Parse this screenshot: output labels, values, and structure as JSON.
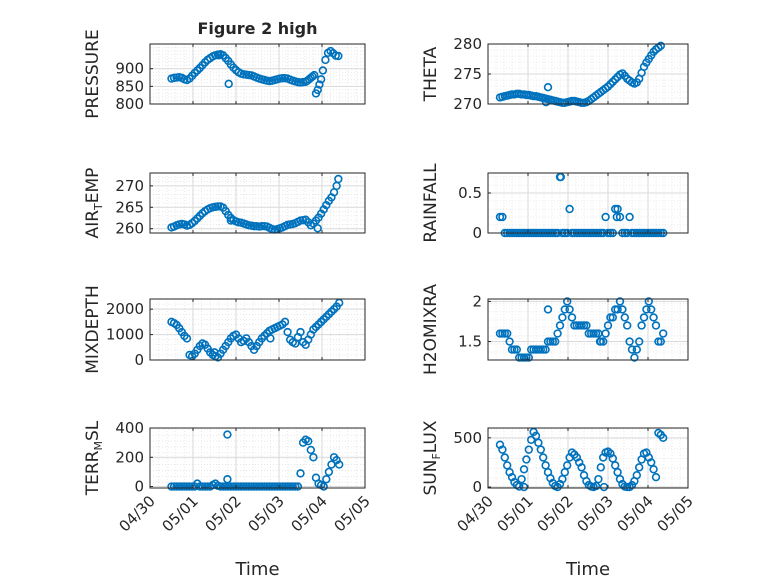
{
  "figure": {
    "title": "Figure 2 high",
    "xlabel": "Time",
    "x_ticks": [
      "04/30",
      "05/01",
      "05/02",
      "05/03",
      "05/04",
      "05/05"
    ],
    "marker_color": "#0072BD",
    "axes_color": "#262626",
    "grid_color": "#d9d9d9",
    "background": "#ffffff"
  },
  "chart_data": [
    {
      "type": "scatter",
      "title": "Figure 2 high",
      "ylabel": "PRESSURE",
      "ylabel_sub": "",
      "ylim": [
        800,
        970
      ],
      "yticks": [
        800,
        850,
        900
      ],
      "ytick_labels": [
        "800",
        "850",
        "900"
      ],
      "xlabel": "",
      "xlim": [
        0,
        5
      ],
      "grid": true,
      "marker": "circle-open",
      "x": [
        0.5,
        0.56,
        0.62,
        0.68,
        0.74,
        0.8,
        0.86,
        0.92,
        0.98,
        1.04,
        1.1,
        1.16,
        1.22,
        1.28,
        1.34,
        1.4,
        1.46,
        1.52,
        1.58,
        1.64,
        1.7,
        1.76,
        1.82,
        1.88,
        1.94,
        2.0,
        2.06,
        2.12,
        2.18,
        2.24,
        2.3,
        2.36,
        2.42,
        2.48,
        2.54,
        2.6,
        2.66,
        2.72,
        2.78,
        2.84,
        2.9,
        2.96,
        3.02,
        3.08,
        3.14,
        3.2,
        3.26,
        3.32,
        3.38,
        3.44,
        3.5,
        3.56,
        3.62,
        3.66,
        3.7,
        3.74,
        3.78,
        3.82,
        3.86,
        3.9,
        3.94,
        3.98,
        4.02,
        4.08,
        4.14,
        4.2,
        4.26,
        4.32,
        4.38
      ],
      "y": [
        872,
        874,
        875,
        876,
        874,
        870,
        868,
        872,
        880,
        888,
        895,
        902,
        910,
        918,
        925,
        930,
        935,
        938,
        940,
        941,
        938,
        930,
        922,
        912,
        903,
        896,
        890,
        886,
        884,
        883,
        882,
        881,
        878,
        875,
        872,
        870,
        868,
        866,
        865,
        866,
        868,
        870,
        872,
        873,
        873,
        872,
        869,
        866,
        864,
        862,
        861,
        862,
        863,
        866,
        870,
        874,
        878,
        882,
        830,
        840,
        855,
        870,
        895,
        925,
        945,
        950,
        944,
        937,
        936
      ],
      "outliers": [
        {
          "x": 1.83,
          "y": 857
        },
        {
          "x": 1.6,
          "y": 938
        }
      ]
    },
    {
      "type": "scatter",
      "title": "",
      "ylabel": "THETA",
      "ylabel_sub": "",
      "ylim": [
        270,
        280
      ],
      "yticks": [
        270,
        275,
        280
      ],
      "ytick_labels": [
        "270",
        "275",
        "280"
      ],
      "xlabel": "",
      "xlim": [
        0,
        5
      ],
      "grid": true,
      "marker": "circle-open",
      "x": [
        0.3,
        0.36,
        0.42,
        0.48,
        0.54,
        0.6,
        0.66,
        0.72,
        0.78,
        0.84,
        0.9,
        0.96,
        1.02,
        1.08,
        1.14,
        1.2,
        1.26,
        1.32,
        1.38,
        1.44,
        1.5,
        1.56,
        1.62,
        1.68,
        1.74,
        1.8,
        1.86,
        1.92,
        1.98,
        2.04,
        2.1,
        2.16,
        2.22,
        2.28,
        2.34,
        2.4,
        2.46,
        2.52,
        2.58,
        2.64,
        2.7,
        2.76,
        2.82,
        2.88,
        2.94,
        3.0,
        3.06,
        3.12,
        3.18,
        3.24,
        3.3,
        3.36,
        3.42,
        3.48,
        3.54,
        3.6,
        3.66,
        3.72,
        3.78,
        3.84,
        3.9,
        3.96,
        4.02,
        4.08,
        4.14,
        4.2,
        4.26,
        4.32
      ],
      "y": [
        271.1,
        271.2,
        271.3,
        271.4,
        271.5,
        271.6,
        271.6,
        271.7,
        271.7,
        271.6,
        271.6,
        271.5,
        271.5,
        271.4,
        271.3,
        271.3,
        271.2,
        271.1,
        271.0,
        270.9,
        270.8,
        270.7,
        270.6,
        270.5,
        270.4,
        270.3,
        270.2,
        270.2,
        270.3,
        270.4,
        270.5,
        270.5,
        270.4,
        270.3,
        270.2,
        270.2,
        270.3,
        270.5,
        270.8,
        271.1,
        271.4,
        271.7,
        272.0,
        272.3,
        272.6,
        272.9,
        273.3,
        273.7,
        274.1,
        274.5,
        274.9,
        275.1,
        274.7,
        274.2,
        273.9,
        273.6,
        273.4,
        273.6,
        274.2,
        275.2,
        276.2,
        276.9,
        277.5,
        278.1,
        278.7,
        279.1,
        279.4,
        279.7
      ],
      "outliers": [
        {
          "x": 1.5,
          "y": 272.8
        },
        {
          "x": 1.45,
          "y": 270.3
        }
      ]
    },
    {
      "type": "scatter",
      "title": "",
      "ylabel": "AIR",
      "ylabel_sub": "T",
      "ylabel_rest": "EMP",
      "ylim": [
        259,
        273
      ],
      "yticks": [
        260,
        265,
        270
      ],
      "ytick_labels": [
        "260",
        "265",
        "270"
      ],
      "xlabel": "",
      "xlim": [
        0,
        5
      ],
      "grid": true,
      "marker": "circle-open",
      "x": [
        0.5,
        0.56,
        0.62,
        0.68,
        0.74,
        0.8,
        0.86,
        0.92,
        0.98,
        1.04,
        1.1,
        1.16,
        1.22,
        1.28,
        1.34,
        1.4,
        1.46,
        1.52,
        1.58,
        1.64,
        1.7,
        1.76,
        1.82,
        1.88,
        1.94,
        2.0,
        2.06,
        2.12,
        2.18,
        2.24,
        2.3,
        2.36,
        2.42,
        2.48,
        2.54,
        2.6,
        2.66,
        2.72,
        2.78,
        2.84,
        2.9,
        2.96,
        3.02,
        3.08,
        3.14,
        3.2,
        3.26,
        3.32,
        3.38,
        3.44,
        3.5,
        3.56,
        3.62,
        3.68,
        3.74,
        3.8,
        3.86,
        3.92,
        3.98,
        4.04,
        4.1,
        4.16,
        4.22,
        4.28,
        4.34,
        4.38
      ],
      "y": [
        260.3,
        260.5,
        260.8,
        261.0,
        261.1,
        261.0,
        260.7,
        260.9,
        261.3,
        261.8,
        262.4,
        263.0,
        263.6,
        264.1,
        264.5,
        264.8,
        265.0,
        265.1,
        265.2,
        265.2,
        264.9,
        264.1,
        263.2,
        262.5,
        262.0,
        261.7,
        261.5,
        261.4,
        261.2,
        261.0,
        260.8,
        260.7,
        260.6,
        260.6,
        260.5,
        260.6,
        260.6,
        260.5,
        260.2,
        259.9,
        259.8,
        259.9,
        260.1,
        260.3,
        260.6,
        260.9,
        261.0,
        261.1,
        261.3,
        261.6,
        261.9,
        262.0,
        262.1,
        261.5,
        260.8,
        261.2,
        261.9,
        262.6,
        263.5,
        264.5,
        265.5,
        266.5,
        267.3,
        268.5,
        270.0,
        271.6
      ],
      "outliers": [
        {
          "x": 1.88,
          "y": 261.9
        },
        {
          "x": 3.9,
          "y": 260.1
        }
      ]
    },
    {
      "type": "scatter",
      "title": "",
      "ylabel": "RAINFALL",
      "ylabel_sub": "",
      "ylim": [
        0,
        0.75
      ],
      "yticks": [
        0,
        0.5
      ],
      "ytick_labels": [
        "0",
        "0.5"
      ],
      "xlabel": "",
      "xlim": [
        0,
        5
      ],
      "grid": true,
      "marker": "circle-open",
      "x": [
        0.3,
        0.36,
        0.42,
        0.48,
        0.54,
        0.6,
        0.66,
        0.72,
        0.78,
        0.84,
        0.9,
        0.96,
        1.02,
        1.08,
        1.14,
        1.2,
        1.26,
        1.32,
        1.38,
        1.44,
        1.5,
        1.56,
        1.62,
        1.68,
        1.74,
        1.8,
        1.86,
        1.92,
        1.98,
        2.04,
        2.1,
        2.16,
        2.22,
        2.28,
        2.34,
        2.4,
        2.46,
        2.52,
        2.58,
        2.64,
        2.7,
        2.76,
        2.82,
        2.88,
        2.94,
        3.0,
        3.06,
        3.12,
        3.18,
        3.24,
        3.3,
        3.36,
        3.42,
        3.48,
        3.54,
        3.6,
        3.66,
        3.72,
        3.78,
        3.84,
        3.9,
        3.96,
        4.02,
        4.08,
        4.14,
        4.2,
        4.26,
        4.32,
        4.38
      ],
      "y": [
        0.2,
        0.2,
        0,
        0,
        0,
        0,
        0,
        0,
        0,
        0,
        0,
        0,
        0,
        0,
        0,
        0,
        0,
        0,
        0,
        0,
        0,
        0,
        0,
        0,
        0,
        0.7,
        0,
        0,
        0,
        0.3,
        0,
        0,
        0,
        0,
        0,
        0,
        0,
        0,
        0,
        0,
        0,
        0,
        0,
        0,
        0.2,
        0,
        0,
        0,
        0.3,
        0.3,
        0.2,
        0,
        0,
        0,
        0.2,
        0,
        0,
        0,
        0,
        0,
        0,
        0,
        0,
        0,
        0,
        0,
        0,
        0,
        0
      ],
      "outliers": [
        {
          "x": 1.82,
          "y": 0.7
        },
        {
          "x": 3.22,
          "y": 0.2
        }
      ]
    },
    {
      "type": "scatter",
      "title": "",
      "ylabel": "MIXDEPTH",
      "ylabel_sub": "",
      "ylim": [
        0,
        2400
      ],
      "yticks": [
        0,
        1000,
        2000
      ],
      "ytick_labels": [
        "0",
        "1000",
        "2000"
      ],
      "xlabel": "",
      "xlim": [
        0,
        5
      ],
      "grid": true,
      "marker": "circle-open",
      "x": [
        0.5,
        0.56,
        0.62,
        0.68,
        0.74,
        0.8,
        0.86,
        0.92,
        0.98,
        1.04,
        1.1,
        1.16,
        1.22,
        1.28,
        1.34,
        1.4,
        1.46,
        1.52,
        1.58,
        1.64,
        1.7,
        1.76,
        1.82,
        1.88,
        1.94,
        2.0,
        2.06,
        2.12,
        2.18,
        2.24,
        2.3,
        2.36,
        2.42,
        2.48,
        2.54,
        2.6,
        2.66,
        2.72,
        2.78,
        2.84,
        2.9,
        2.96,
        3.02,
        3.08,
        3.14,
        3.2,
        3.26,
        3.32,
        3.38,
        3.44,
        3.5,
        3.56,
        3.62,
        3.68,
        3.74,
        3.8,
        3.86,
        3.92,
        3.98,
        4.04,
        4.1,
        4.16,
        4.22,
        4.28,
        4.34,
        4.4
      ],
      "y": [
        1500,
        1450,
        1380,
        1250,
        1100,
        950,
        850,
        200,
        150,
        250,
        400,
        550,
        650,
        600,
        450,
        300,
        200,
        150,
        100,
        250,
        400,
        550,
        700,
        850,
        950,
        1000,
        850,
        700,
        750,
        850,
        700,
        550,
        400,
        550,
        700,
        850,
        950,
        1050,
        1150,
        1200,
        1250,
        1300,
        1350,
        1400,
        1500,
        1100,
        800,
        700,
        650,
        900,
        1100,
        700,
        600,
        800,
        1000,
        1200,
        1300,
        1400,
        1500,
        1600,
        1700,
        1800,
        1900,
        2000,
        2100,
        2250
      ],
      "outliers": [
        {
          "x": 1.5,
          "y": 300
        },
        {
          "x": 2.8,
          "y": 850
        }
      ]
    },
    {
      "type": "scatter",
      "title": "",
      "ylabel": "H2OMIXRA",
      "ylabel_sub": "",
      "ylim": [
        1.27,
        2.03
      ],
      "yticks": [
        1.5,
        2
      ],
      "ytick_labels": [
        "1.5",
        "2"
      ],
      "xlabel": "",
      "xlim": [
        0,
        5
      ],
      "grid": true,
      "marker": "circle-open",
      "x": [
        0.3,
        0.36,
        0.42,
        0.48,
        0.54,
        0.6,
        0.66,
        0.72,
        0.78,
        0.84,
        0.9,
        0.96,
        1.02,
        1.08,
        1.14,
        1.2,
        1.26,
        1.32,
        1.38,
        1.44,
        1.5,
        1.56,
        1.62,
        1.68,
        1.74,
        1.8,
        1.86,
        1.92,
        1.98,
        2.04,
        2.1,
        2.16,
        2.22,
        2.28,
        2.34,
        2.4,
        2.46,
        2.52,
        2.58,
        2.64,
        2.7,
        2.76,
        2.82,
        2.88,
        2.94,
        3.0,
        3.06,
        3.12,
        3.18,
        3.24,
        3.3,
        3.36,
        3.42,
        3.48,
        3.54,
        3.6,
        3.66,
        3.72,
        3.78,
        3.84,
        3.9,
        3.96,
        4.02,
        4.08,
        4.14,
        4.2,
        4.26,
        4.32,
        4.38
      ],
      "y": [
        1.6,
        1.6,
        1.6,
        1.6,
        1.5,
        1.4,
        1.4,
        1.4,
        1.3,
        1.3,
        1.3,
        1.3,
        1.3,
        1.4,
        1.4,
        1.4,
        1.4,
        1.4,
        1.4,
        1.4,
        1.5,
        1.5,
        1.5,
        1.5,
        1.6,
        1.7,
        1.8,
        1.9,
        2.0,
        1.9,
        1.8,
        1.7,
        1.7,
        1.7,
        1.7,
        1.7,
        1.7,
        1.6,
        1.6,
        1.6,
        1.6,
        1.6,
        1.5,
        1.5,
        1.6,
        1.7,
        1.8,
        1.8,
        1.9,
        1.9,
        2.0,
        1.9,
        1.8,
        1.7,
        1.5,
        1.4,
        1.3,
        1.4,
        1.5,
        1.7,
        1.8,
        1.9,
        2.0,
        1.9,
        1.8,
        1.7,
        1.5,
        1.5,
        1.6
      ],
      "outliers": [
        {
          "x": 1.5,
          "y": 1.9
        },
        {
          "x": 2.8,
          "y": 1.5
        }
      ]
    },
    {
      "type": "scatter",
      "title": "",
      "ylabel": "TERR",
      "ylabel_sub": "M",
      "ylabel_rest": "SL",
      "ylim": [
        -10,
        400
      ],
      "yticks": [
        0,
        200,
        400
      ],
      "ytick_labels": [
        "0",
        "200",
        "400"
      ],
      "xlabel": "Time",
      "xlim": [
        0,
        5
      ],
      "grid": true,
      "marker": "circle-open",
      "x": [
        0.5,
        0.56,
        0.62,
        0.68,
        0.74,
        0.8,
        0.86,
        0.92,
        0.98,
        1.04,
        1.1,
        1.16,
        1.22,
        1.28,
        1.34,
        1.4,
        1.46,
        1.52,
        1.58,
        1.64,
        1.7,
        1.76,
        1.82,
        1.88,
        1.94,
        2.0,
        2.06,
        2.12,
        2.18,
        2.24,
        2.3,
        2.36,
        2.42,
        2.48,
        2.54,
        2.6,
        2.66,
        2.72,
        2.78,
        2.84,
        2.9,
        2.96,
        3.02,
        3.08,
        3.14,
        3.2,
        3.26,
        3.32,
        3.38,
        3.44,
        3.5,
        3.56,
        3.62,
        3.68,
        3.74,
        3.8,
        3.86,
        3.92,
        3.98,
        4.04,
        4.1,
        4.16,
        4.22,
        4.28,
        4.34,
        4.4
      ],
      "y": [
        0,
        0,
        0,
        0,
        0,
        0,
        0,
        0,
        0,
        0,
        20,
        0,
        0,
        0,
        0,
        0,
        10,
        20,
        5,
        0,
        0,
        0,
        0,
        0,
        0,
        0,
        0,
        0,
        0,
        0,
        0,
        0,
        0,
        0,
        0,
        0,
        0,
        0,
        0,
        0,
        0,
        0,
        0,
        0,
        0,
        0,
        0,
        0,
        0,
        0,
        90,
        300,
        320,
        310,
        250,
        200,
        60,
        20,
        10,
        0,
        50,
        100,
        150,
        200,
        180,
        150
      ],
      "outliers": [
        {
          "x": 1.8,
          "y": 355
        },
        {
          "x": 1.8,
          "y": 50
        }
      ]
    },
    {
      "type": "scatter",
      "title": "",
      "ylabel": "SUN",
      "ylabel_sub": "F",
      "ylabel_rest": "LUX",
      "ylim": [
        -10,
        600
      ],
      "yticks": [
        0,
        500
      ],
      "ytick_labels": [
        "0",
        "500"
      ],
      "xlabel": "Time",
      "xlim": [
        0,
        5
      ],
      "grid": true,
      "marker": "circle-open",
      "x": [
        0.3,
        0.36,
        0.42,
        0.48,
        0.54,
        0.6,
        0.66,
        0.72,
        0.78,
        0.84,
        0.9,
        0.96,
        1.02,
        1.08,
        1.14,
        1.2,
        1.26,
        1.32,
        1.38,
        1.44,
        1.5,
        1.56,
        1.62,
        1.68,
        1.74,
        1.8,
        1.86,
        1.92,
        1.98,
        2.04,
        2.1,
        2.16,
        2.22,
        2.28,
        2.34,
        2.4,
        2.46,
        2.52,
        2.58,
        2.64,
        2.7,
        2.76,
        2.82,
        2.88,
        2.94,
        3.0,
        3.06,
        3.12,
        3.18,
        3.24,
        3.3,
        3.36,
        3.42,
        3.48,
        3.54,
        3.6,
        3.66,
        3.72,
        3.78,
        3.84,
        3.9,
        3.96,
        4.02,
        4.08,
        4.14,
        4.2,
        4.26,
        4.32,
        4.38
      ],
      "y": [
        430,
        380,
        300,
        220,
        150,
        100,
        50,
        20,
        5,
        80,
        180,
        280,
        380,
        480,
        560,
        520,
        450,
        380,
        300,
        220,
        150,
        90,
        40,
        10,
        0,
        30,
        80,
        150,
        220,
        300,
        350,
        330,
        300,
        250,
        200,
        120,
        60,
        20,
        5,
        0,
        10,
        80,
        200,
        300,
        350,
        360,
        340,
        290,
        220,
        150,
        80,
        30,
        5,
        0,
        0,
        20,
        60,
        120,
        200,
        280,
        340,
        350,
        300,
        250,
        180,
        100,
        550,
        530,
        500
      ],
      "outliers": [
        {
          "x": 0.9,
          "y": 0
        },
        {
          "x": 2.9,
          "y": 0
        }
      ]
    }
  ]
}
